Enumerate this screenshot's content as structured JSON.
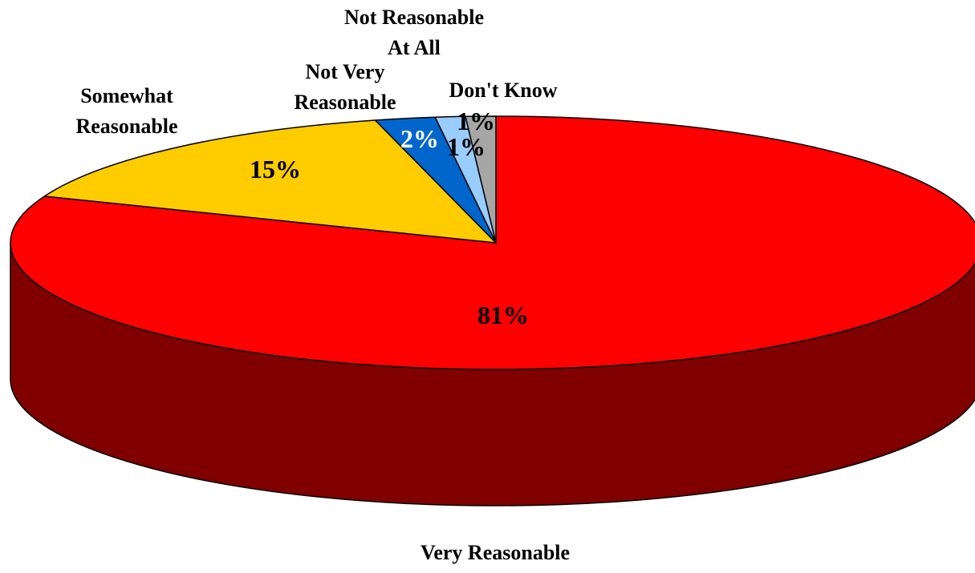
{
  "chart_data": {
    "type": "pie",
    "style": "3d",
    "title": "",
    "slices": [
      {
        "label": "Very Reasonable",
        "value": 81,
        "value_label": "81%",
        "color": "#FF0000",
        "side_color": "#800000"
      },
      {
        "label": "Somewhat Reasonable",
        "value": 15,
        "value_label": "15%",
        "color": "#FFCC00",
        "side_color": "#806600"
      },
      {
        "label": "Not Very Reasonable",
        "value": 2,
        "value_label": "2%",
        "color": "#0066CC",
        "side_color": "#003366"
      },
      {
        "label": "Not Reasonable At All",
        "value": 1,
        "value_label": "1%",
        "color": "#99CCFF",
        "side_color": "#4D6680"
      },
      {
        "label": "Don't Know",
        "value": 1,
        "value_label": "1%",
        "color": "#A6A6A6",
        "side_color": "#555555"
      }
    ],
    "value_label_colors": [
      "#000000",
      "#000000",
      "#FFFFFF",
      "#000000",
      "#000000"
    ],
    "label_lines": [
      [
        "Very Reasonable"
      ],
      [
        "Somewhat",
        "Reasonable"
      ],
      [
        "Not Very",
        "Reasonable"
      ],
      [
        "Not Reasonable",
        "At All"
      ],
      [
        "Don't Know"
      ]
    ]
  }
}
